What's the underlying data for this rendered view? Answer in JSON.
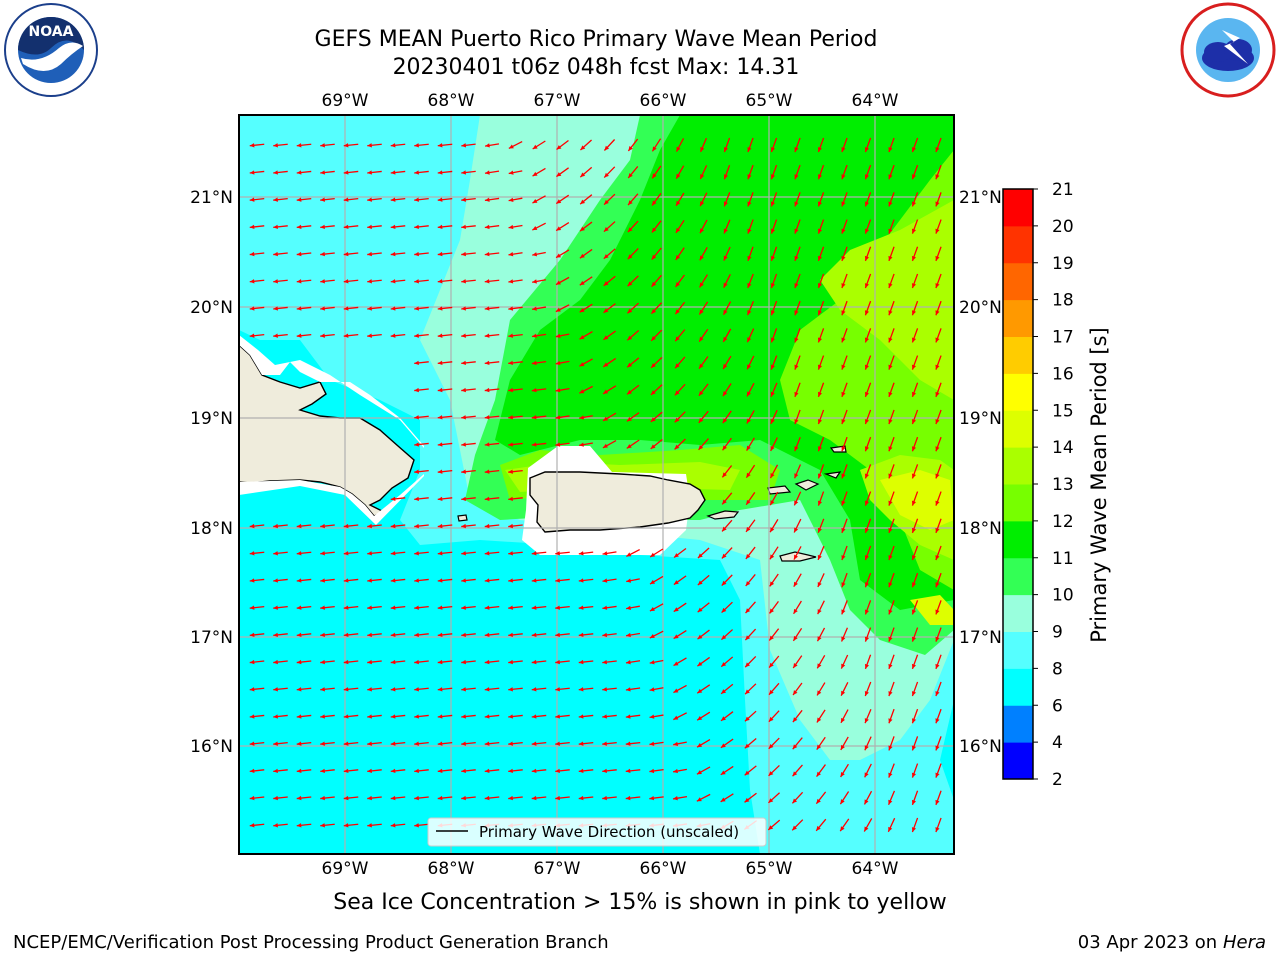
{
  "title_line1": "GEFS MEAN Puerto Rico Primary Wave Mean Period",
  "title_line2": "20230401 t06z 048h fcst   Max: 14.31",
  "logos": {
    "left": "noaa-logo",
    "right": "national-weather-service-logo"
  },
  "map": {
    "lon_ticks": [
      "69°W",
      "68°W",
      "67°W",
      "66°W",
      "65°W",
      "64°W"
    ],
    "lat_ticks": [
      "21°N",
      "20°N",
      "19°N",
      "18°N",
      "17°N",
      "16°N"
    ],
    "legend_label": "Primary Wave Direction (unscaled)",
    "arrow_color": "#ff0000",
    "land_color": "#efecdc"
  },
  "colorbar": {
    "label": "Primary Wave Mean Period [s]",
    "ticks": [
      "2",
      "4",
      "6",
      "8",
      "9",
      "10",
      "11",
      "12",
      "13",
      "14",
      "15",
      "16",
      "17",
      "18",
      "19",
      "20",
      "21"
    ],
    "colors": [
      "#0000ff",
      "#0080ff",
      "#00ffff",
      "#55ffff",
      "#99ffdd",
      "#33ff55",
      "#00ee00",
      "#77ff00",
      "#aaff00",
      "#ddff00",
      "#ffff00",
      "#ffcc00",
      "#ff9900",
      "#ff6600",
      "#ff3300",
      "#ff0000"
    ]
  },
  "note": "Sea Ice Concentration > 15% is shown in pink to yellow",
  "footer_left": "NCEP/EMC/Verification Post Processing Product Generation Branch",
  "footer_right_prefix": "03 Apr 2023 on ",
  "footer_right_host": "Hera"
}
